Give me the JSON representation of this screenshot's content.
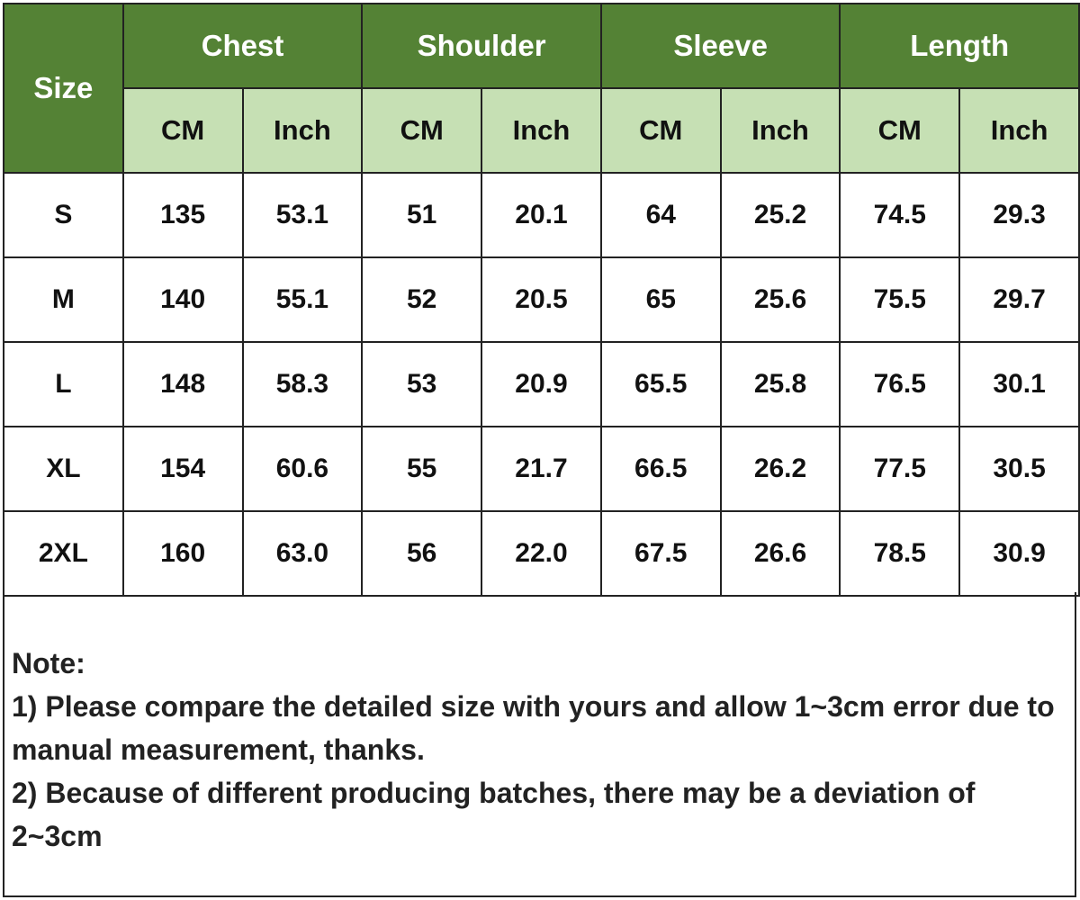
{
  "header": {
    "size_label": "Size",
    "groups": [
      "Chest",
      "Shoulder",
      "Sleeve",
      "Length"
    ],
    "units": [
      "CM",
      "Inch"
    ]
  },
  "rows": [
    {
      "size": "S",
      "values": [
        "135",
        "53.1",
        "51",
        "20.1",
        "64",
        "25.2",
        "74.5",
        "29.3"
      ]
    },
    {
      "size": "M",
      "values": [
        "140",
        "55.1",
        "52",
        "20.5",
        "65",
        "25.6",
        "75.5",
        "29.7"
      ]
    },
    {
      "size": "L",
      "values": [
        "148",
        "58.3",
        "53",
        "20.9",
        "65.5",
        "25.8",
        "76.5",
        "30.1"
      ]
    },
    {
      "size": "XL",
      "values": [
        "154",
        "60.6",
        "55",
        "21.7",
        "66.5",
        "26.2",
        "77.5",
        "30.5"
      ]
    },
    {
      "size": "2XL",
      "values": [
        "160",
        "63.0",
        "56",
        "22.0",
        "67.5",
        "26.6",
        "78.5",
        "30.9"
      ]
    }
  ],
  "note": {
    "title": "Note:",
    "lines": [
      "1) Please compare the detailed size with yours and allow 1~3cm error due to manual measurement, thanks.",
      "2) Because of different producing batches, there may be a deviation of 2~3cm"
    ]
  },
  "colors": {
    "header_dark": "#548235",
    "header_light": "#c6e0b4"
  }
}
